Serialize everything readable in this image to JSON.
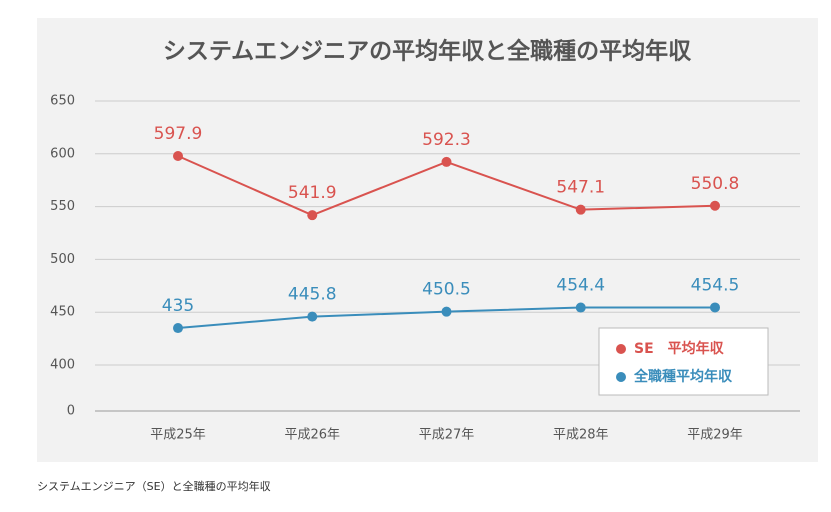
{
  "chart_data": {
    "type": "line",
    "title": "システムエンジニアの平均年収と全職種の平均年収",
    "caption": "システムエンジニア（SE）と全職種の平均年収",
    "categories": [
      "平成25年",
      "平成26年",
      "平成27年",
      "平成28年",
      "平成29年"
    ],
    "series": [
      {
        "name": "SE　平均年収",
        "color": "#d9534f",
        "values": [
          597.9,
          541.9,
          592.3,
          547.1,
          550.8
        ]
      },
      {
        "name": "全職種平均年収",
        "color": "#3a8dbb",
        "values": [
          435,
          445.8,
          450.5,
          454.4,
          454.5
        ]
      }
    ],
    "ylim": [
      0,
      650
    ],
    "ybreak": [
      0,
      400
    ],
    "yticks": [
      0,
      400,
      450,
      500,
      550,
      600,
      650
    ],
    "grid": true,
    "legend": "lower right"
  }
}
